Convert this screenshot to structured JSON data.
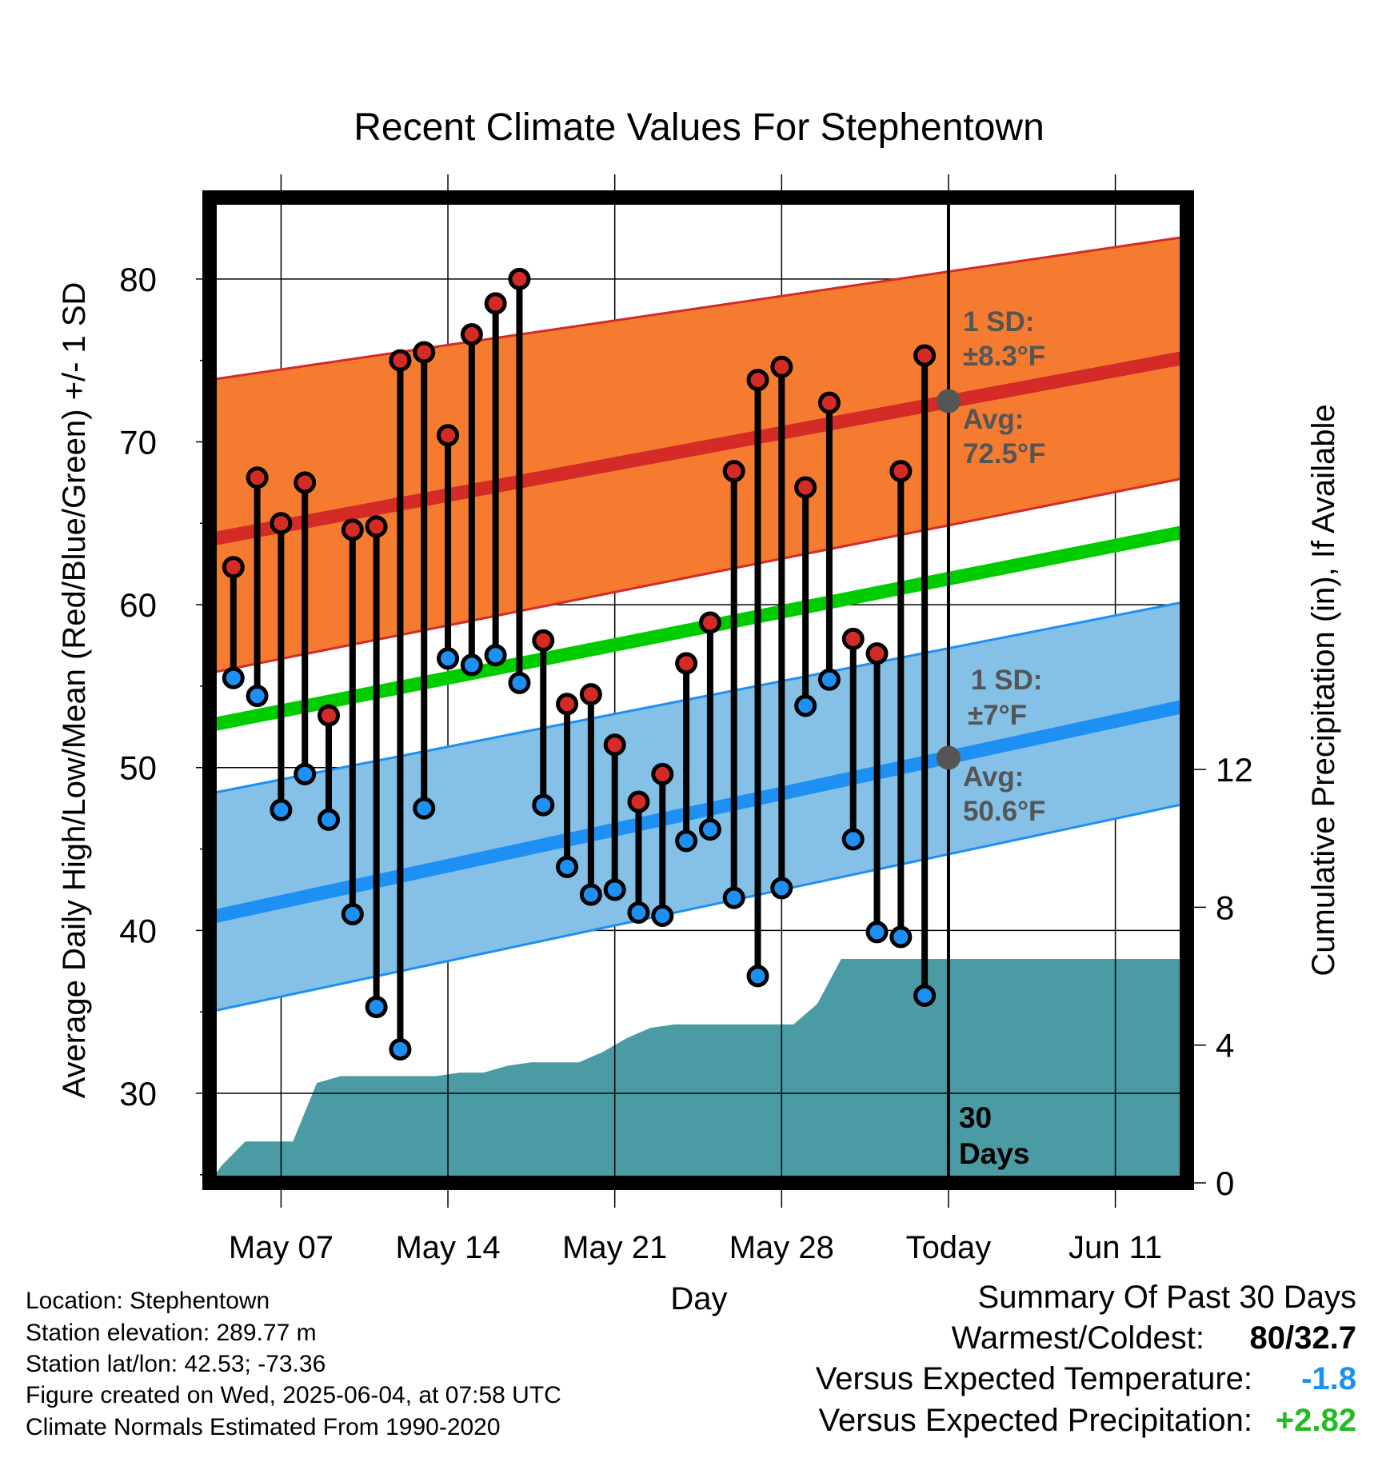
{
  "chart_data": {
    "type": "line",
    "title": "Recent Climate Values For Stephentown",
    "xlabel": "Day",
    "ylabel_left": "Average Daily High/Low/Mean (Red/Blue/Green) +/- 1 SD",
    "ylabel_right": "Cumulative Precipitation (in), If Available",
    "x_ticks": [
      "May 07",
      "May 14",
      "May 21",
      "May 28",
      "Today",
      "Jun 11"
    ],
    "x_tick_days": [
      3,
      10,
      17,
      24,
      31,
      38
    ],
    "x_range_days": [
      0,
      41
    ],
    "left_ylim": [
      24.5,
      85
    ],
    "left_ticks": [
      30,
      40,
      50,
      60,
      70,
      80
    ],
    "right_ylim": [
      0,
      28.6
    ],
    "right_ticks": [
      0,
      4,
      8,
      12
    ],
    "colors": {
      "high_band": "#f47b30",
      "high_line": "#d42b27",
      "low_band": "#85c1e6",
      "low_line": "#1e8ff3",
      "mean_line": "#00cc00",
      "precip": "#4a9ba3",
      "annotation": "#555555",
      "dot_high": "#d42b27",
      "dot_low": "#1e8ff3"
    },
    "normals": {
      "days": [
        0,
        41
      ],
      "high_avg": [
        64.0,
        75.2
      ],
      "high_upper": [
        73.8,
        82.6
      ],
      "high_lower": [
        55.8,
        67.8
      ],
      "low_avg": [
        40.8,
        53.8
      ],
      "low_upper": [
        48.4,
        60.2
      ],
      "low_lower": [
        35.0,
        47.8
      ],
      "mean": [
        52.6,
        64.5
      ]
    },
    "daily": {
      "days": [
        1,
        2,
        3,
        4,
        5,
        6,
        7,
        8,
        9,
        10,
        11,
        12,
        13,
        14,
        15,
        16,
        17,
        18,
        19,
        20,
        21,
        22,
        23,
        24,
        25,
        26,
        27,
        28,
        29,
        30
      ],
      "high": [
        62.3,
        67.8,
        65.0,
        67.5,
        53.2,
        64.6,
        64.8,
        75.0,
        75.5,
        70.4,
        76.6,
        78.5,
        80.0,
        57.8,
        53.9,
        54.5,
        51.4,
        47.9,
        49.6,
        56.4,
        58.9,
        68.2,
        73.8,
        74.6,
        67.2,
        72.4,
        57.9,
        57.0,
        68.2,
        75.3
      ],
      "low": [
        55.5,
        54.4,
        47.4,
        49.6,
        46.8,
        41.0,
        35.3,
        32.7,
        47.5,
        56.7,
        56.3,
        56.9,
        55.2,
        47.7,
        43.9,
        42.2,
        42.5,
        41.1,
        40.9,
        45.5,
        46.2,
        42.0,
        37.2,
        42.6,
        53.8,
        55.4,
        45.6,
        39.9,
        39.6,
        36.0
      ]
    },
    "precip": {
      "days": [
        0,
        0.5,
        1.5,
        2.5,
        3.5,
        4.5,
        5.5,
        6.5,
        7.5,
        8.5,
        9.5,
        10.5,
        11.5,
        12.5,
        13.5,
        14.5,
        15.5,
        16.5,
        17.5,
        18.5,
        19.5,
        20.5,
        21.5,
        22.5,
        23.5,
        24.5,
        25.5,
        26.5,
        27,
        28,
        29,
        30,
        31,
        32,
        33,
        34,
        35,
        36,
        37,
        38,
        39,
        40,
        41
      ],
      "cumulative": [
        0,
        0.5,
        1.2,
        1.2,
        1.2,
        2.9,
        3.1,
        3.1,
        3.1,
        3.1,
        3.1,
        3.2,
        3.2,
        3.4,
        3.5,
        3.5,
        3.5,
        3.8,
        4.2,
        4.5,
        4.6,
        4.6,
        4.6,
        4.6,
        4.6,
        4.6,
        5.2,
        6.5,
        6.5,
        6.5,
        6.5,
        6.5,
        6.5,
        6.5,
        6.5,
        6.5,
        6.5,
        6.5,
        6.5,
        6.5,
        6.5,
        6.5,
        6.5
      ]
    },
    "today_day": 31,
    "annotations": {
      "high_sd": "1 SD:",
      "high_sd_value": "±8.3°F",
      "high_avg_label": "Avg:",
      "high_avg_value": "72.5°F",
      "high_avg_temp": 72.5,
      "low_sd": "1 SD:",
      "low_sd_value": "±7°F",
      "low_avg_label": "Avg:",
      "low_avg_value": "50.6°F",
      "low_avg_temp": 50.6,
      "days_number": "30",
      "days_label": "Days"
    },
    "grid": true,
    "legend": "none"
  },
  "info": {
    "location": "Location: Stephentown",
    "elevation": "Station elevation: 289.77 m",
    "latlon": "Station lat/lon: 42.53; -73.36",
    "created": "Figure created on Wed, 2025-06-04, at 07:58 UTC",
    "normals": "Climate Normals Estimated From 1990-2020"
  },
  "summary": {
    "title": "Summary Of Past 30 Days",
    "warm_cold_label": "Warmest/Coldest:",
    "warm_cold_value": "80/32.7",
    "temp_label": "Versus Expected Temperature:",
    "temp_value": "-1.8",
    "temp_color": "#1e8ff3",
    "precip_label": "Versus Expected Precipitation:",
    "precip_value": "+2.82",
    "precip_color": "#22bb22"
  }
}
